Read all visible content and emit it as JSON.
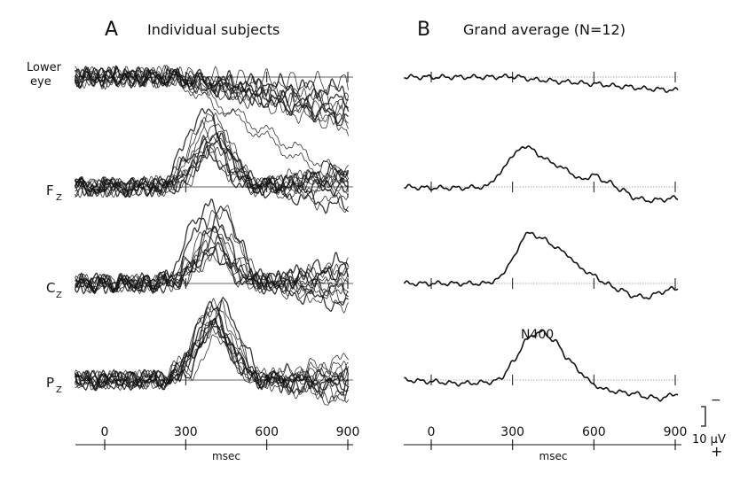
{
  "panels": {
    "A": {
      "letter": "A",
      "title": "Individual subjects"
    },
    "B": {
      "letter": "B",
      "title": "Grand average (N=12)"
    }
  },
  "channels": [
    {
      "id": "lower-eye",
      "label_line1": "Lower",
      "label_line2": "eye"
    },
    {
      "id": "fz",
      "label": "F",
      "sub": "Z"
    },
    {
      "id": "cz",
      "label": "C",
      "sub": "Z"
    },
    {
      "id": "pz",
      "label": "P",
      "sub": "Z"
    }
  ],
  "annotation": "N400",
  "scale_bar": {
    "label": "10 µV",
    "neg": "−",
    "pos": "+"
  },
  "chart_data": [
    {
      "type": "line",
      "title": "Individual subjects",
      "panel": "A",
      "xlabel": "msec",
      "xticks": [
        0,
        300,
        600,
        900
      ],
      "xlim": [
        -100,
        900
      ],
      "n_subjects": 12,
      "series_shape": {
        "Lower eye": {
          "start_ms": 250,
          "end_ms": 900,
          "end_uv": -6,
          "spread_uv": 4
        },
        "Fz": {
          "peak_ms": 400,
          "peak_uv": -11,
          "spread_uv": 5
        },
        "Cz": {
          "peak_ms": 400,
          "peak_uv": -11,
          "spread_uv": 5
        },
        "Pz": {
          "peak_ms": 400,
          "peak_uv": -11,
          "spread_uv": 5
        }
      }
    },
    {
      "type": "line",
      "title": "Grand average (N=12)",
      "panel": "B",
      "xlabel": "msec",
      "xticks": [
        0,
        300,
        600,
        900
      ],
      "xlim": [
        -100,
        900
      ],
      "series": [
        {
          "name": "Lower eye",
          "x": [
            -100,
            0,
            100,
            200,
            300,
            400,
            500,
            600,
            700,
            800,
            900
          ],
          "values": [
            0,
            0,
            0,
            0,
            -0.1,
            0.6,
            1.0,
            1.4,
            1.9,
            2.4,
            2.7
          ]
        },
        {
          "name": "Fz",
          "x": [
            -100,
            0,
            100,
            200,
            250,
            300,
            350,
            400,
            450,
            500,
            550,
            600,
            650,
            700,
            750,
            800,
            850,
            900
          ],
          "values": [
            0,
            0.2,
            0.2,
            0,
            -2.5,
            -6.5,
            -8.5,
            -6.5,
            -4.8,
            -3.5,
            -1.5,
            -2.4,
            -1.0,
            0.5,
            2.2,
            2.8,
            2.6,
            2.3
          ]
        },
        {
          "name": "Cz",
          "x": [
            -100,
            0,
            100,
            200,
            250,
            300,
            350,
            400,
            450,
            500,
            550,
            600,
            650,
            700,
            750,
            800,
            850,
            900
          ],
          "values": [
            0,
            0,
            0,
            0,
            -1.0,
            -5.0,
            -10.3,
            -9.6,
            -7.8,
            -6.0,
            -3.2,
            -1.6,
            0.2,
            1.4,
            2.6,
            2.8,
            1.7,
            1.0
          ]
        },
        {
          "name": "Pz",
          "x": [
            -100,
            0,
            100,
            200,
            250,
            300,
            350,
            400,
            450,
            500,
            550,
            600,
            650,
            700,
            750,
            800,
            850,
            900
          ],
          "values": [
            0,
            0.3,
            0.7,
            0.5,
            0,
            -3.5,
            -8.2,
            -10.0,
            -8.4,
            -4.7,
            -1.6,
            1.0,
            2.1,
            2.5,
            2.8,
            3.5,
            3.8,
            2.8
          ]
        }
      ]
    }
  ]
}
